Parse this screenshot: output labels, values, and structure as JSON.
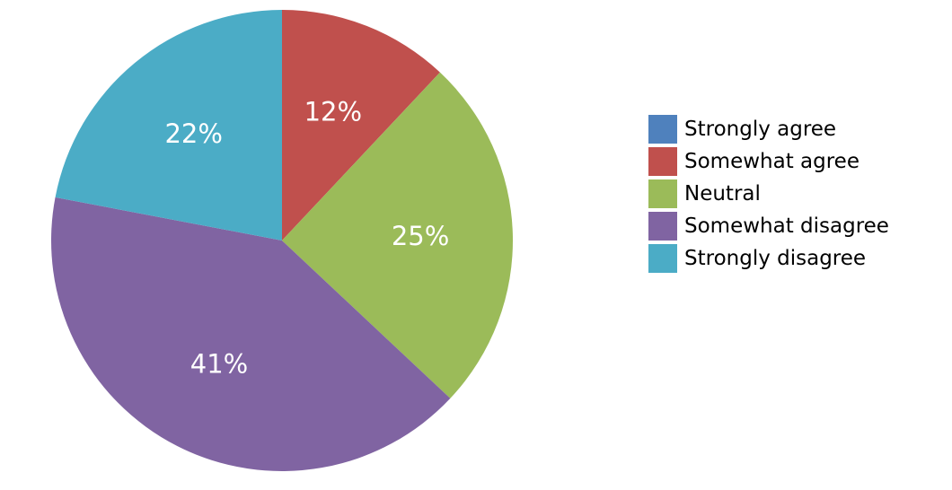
{
  "chart_data": {
    "type": "pie",
    "start_angle_deg": 0,
    "direction": "clockwise",
    "legend_position": "right",
    "slices": [
      {
        "label": "Strongly agree",
        "value": 0,
        "display": "",
        "color": "#4F81BD"
      },
      {
        "label": "Somewhat agree",
        "value": 12,
        "display": "12%",
        "color": "#C0504D"
      },
      {
        "label": "Neutral",
        "value": 25,
        "display": "25%",
        "color": "#9BBB59"
      },
      {
        "label": "Somewhat disagree",
        "value": 41,
        "display": "41%",
        "color": "#8064A2"
      },
      {
        "label": "Strongly disagree",
        "value": 22,
        "display": "22%",
        "color": "#4BACC6"
      }
    ]
  }
}
